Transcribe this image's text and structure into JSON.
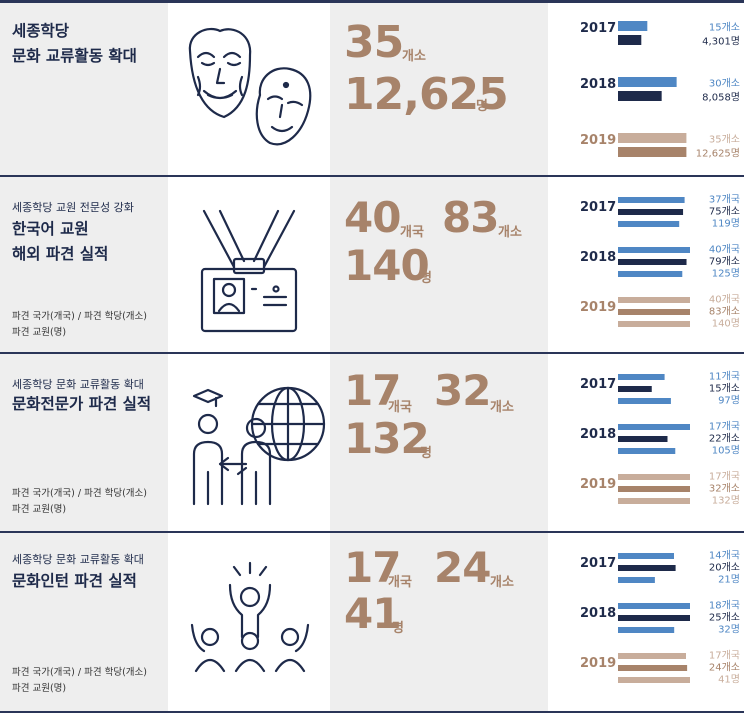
{
  "rows": [
    {
      "subtitle": "세종학당",
      "title_lines": [
        "세종학당",
        "문화 교류활동 확대"
      ],
      "legend": [],
      "icon": "masks-icon",
      "stats": [
        {
          "value": "35",
          "unit": "개소"
        },
        {
          "value": "12,625",
          "unit": "명"
        }
      ],
      "chart_data": {
        "type": "bar",
        "orientation": "horizontal",
        "groups": [
          {
            "year": "2017",
            "bars": [
              {
                "value": 15,
                "label": "15개소",
                "color": "#4f87c4"
              },
              {
                "value": 4301,
                "label": "4,301명",
                "color": "#1e2a4a"
              }
            ]
          },
          {
            "year": "2018",
            "bars": [
              {
                "value": 30,
                "label": "30개소",
                "color": "#4f87c4"
              },
              {
                "value": 8058,
                "label": "8,058명",
                "color": "#1e2a4a"
              }
            ]
          },
          {
            "year": "2019",
            "bars": [
              {
                "value": 35,
                "label": "35개소",
                "color": "#c8ad9b"
              },
              {
                "value": 12625,
                "label": "12,625명",
                "color": "#a7836a"
              }
            ]
          }
        ]
      }
    },
    {
      "subtitle": "세종학당 교원 전문성 강화",
      "title_lines": [
        "한국어 교원",
        "해외 파견 실적"
      ],
      "legend": [
        "파견 국가(개국) / 파견 학당(개소)",
        "파견 교원(명)"
      ],
      "icon": "id-card-icon",
      "stats": [
        {
          "value": "40",
          "unit": "개국"
        },
        {
          "value": "83",
          "unit": "개소"
        },
        {
          "value": "140",
          "unit": "명"
        }
      ],
      "chart_data": {
        "type": "bar",
        "orientation": "horizontal",
        "groups": [
          {
            "year": "2017",
            "bars": [
              {
                "value": 37,
                "label": "37개국",
                "color": "#4f87c4"
              },
              {
                "value": 75,
                "label": "75개소",
                "color": "#1e2a4a"
              },
              {
                "value": 119,
                "label": "119명",
                "color": "#4f87c4"
              }
            ]
          },
          {
            "year": "2018",
            "bars": [
              {
                "value": 40,
                "label": "40개국",
                "color": "#4f87c4"
              },
              {
                "value": 79,
                "label": "79개소",
                "color": "#1e2a4a"
              },
              {
                "value": 125,
                "label": "125명",
                "color": "#4f87c4"
              }
            ]
          },
          {
            "year": "2019",
            "bars": [
              {
                "value": 40,
                "label": "40개국",
                "color": "#c8ad9b"
              },
              {
                "value": 83,
                "label": "83개소",
                "color": "#a7836a"
              },
              {
                "value": 140,
                "label": "140명",
                "color": "#c8ad9b"
              }
            ]
          }
        ]
      }
    },
    {
      "subtitle": "세종학당 문화 교류활동 확대",
      "title_lines": [
        "문화전문가 파견 실적"
      ],
      "legend": [
        "파견 국가(개국) / 파견 학당(개소)",
        "파견 교원(명)"
      ],
      "icon": "globe-people-icon",
      "stats": [
        {
          "value": "17",
          "unit": "개국"
        },
        {
          "value": "32",
          "unit": "개소"
        },
        {
          "value": "132",
          "unit": "명"
        }
      ],
      "chart_data": {
        "type": "bar",
        "orientation": "horizontal",
        "groups": [
          {
            "year": "2017",
            "bars": [
              {
                "value": 11,
                "label": "11개국",
                "color": "#4f87c4"
              },
              {
                "value": 15,
                "label": "15개소",
                "color": "#1e2a4a"
              },
              {
                "value": 97,
                "label": "97명",
                "color": "#4f87c4"
              }
            ]
          },
          {
            "year": "2018",
            "bars": [
              {
                "value": 17,
                "label": "17개국",
                "color": "#4f87c4"
              },
              {
                "value": 22,
                "label": "22개소",
                "color": "#1e2a4a"
              },
              {
                "value": 105,
                "label": "105명",
                "color": "#4f87c4"
              }
            ]
          },
          {
            "year": "2019",
            "bars": [
              {
                "value": 17,
                "label": "17개국",
                "color": "#c8ad9b"
              },
              {
                "value": 32,
                "label": "32개소",
                "color": "#a7836a"
              },
              {
                "value": 132,
                "label": "132명",
                "color": "#c8ad9b"
              }
            ]
          }
        ]
      }
    },
    {
      "subtitle": "세종학당 문화 교류활동 확대",
      "title_lines": [
        "문화인턴 파견 실적"
      ],
      "legend": [
        "파견 국가(개국) / 파견 학당(개소)",
        "파견 교원(명)"
      ],
      "icon": "cheering-people-icon",
      "stats": [
        {
          "value": "17",
          "unit": "개국"
        },
        {
          "value": "24",
          "unit": "개소"
        },
        {
          "value": "41",
          "unit": "명"
        }
      ],
      "chart_data": {
        "type": "bar",
        "orientation": "horizontal",
        "groups": [
          {
            "year": "2017",
            "bars": [
              {
                "value": 14,
                "label": "14개국",
                "color": "#4f87c4"
              },
              {
                "value": 20,
                "label": "20개소",
                "color": "#1e2a4a"
              },
              {
                "value": 21,
                "label": "21명",
                "color": "#4f87c4"
              }
            ]
          },
          {
            "year": "2018",
            "bars": [
              {
                "value": 18,
                "label": "18개국",
                "color": "#4f87c4"
              },
              {
                "value": 25,
                "label": "25개소",
                "color": "#1e2a4a"
              },
              {
                "value": 32,
                "label": "32명",
                "color": "#4f87c4"
              }
            ]
          },
          {
            "year": "2019",
            "bars": [
              {
                "value": 17,
                "label": "17개국",
                "color": "#c8ad9b"
              },
              {
                "value": 24,
                "label": "24개소",
                "color": "#a7836a"
              },
              {
                "value": 41,
                "label": "41명",
                "color": "#c8ad9b"
              }
            ]
          }
        ]
      }
    }
  ],
  "colors": {
    "navy": "#1e2a4a",
    "blue": "#4f87c4",
    "brown": "#a7836a",
    "light_brown": "#c8ad9b",
    "panel_gray": "#eeeeee"
  }
}
